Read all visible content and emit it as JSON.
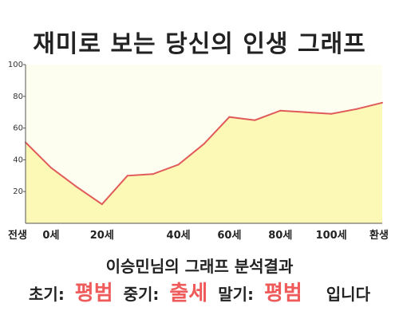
{
  "header": {
    "title": "재미로 보는 당신의 인생 그래프"
  },
  "result": {
    "heading": "이승민님의 그래프 분석결과",
    "early_label": "초기:",
    "early_value": "평범",
    "middle_label": "중기:",
    "middle_value": "출세",
    "late_label": "말기:",
    "late_value": "평범",
    "suffix": "입니다"
  },
  "colors": {
    "line": "#e05a5a",
    "fill": "#fcf8b5",
    "plot_background": "#fdfdf0",
    "axis": "#555555",
    "highlight_text": "#ef5a5a"
  },
  "chart_data": {
    "type": "area",
    "title": "",
    "xlabel": "",
    "ylabel": "",
    "ylim": [
      0,
      100
    ],
    "yticks": [
      20,
      40,
      60,
      80,
      100
    ],
    "ytick_labels": [
      "20",
      "40",
      "60",
      "80",
      "100"
    ],
    "xtick_labels": [
      "전생",
      "0세",
      "20세",
      "40세",
      "60세",
      "80세",
      "100세",
      "환생"
    ],
    "grid": false,
    "legend": "none",
    "series": [
      {
        "x": [
          "전생",
          "0세",
          "",
          "20세",
          "",
          "",
          "40세",
          "",
          "60세",
          "",
          "80세",
          "",
          "100세",
          "",
          "환생"
        ],
        "values": [
          51,
          35,
          23,
          12,
          30,
          31,
          37,
          50,
          67,
          65,
          71,
          70,
          69,
          72,
          76
        ]
      }
    ]
  }
}
